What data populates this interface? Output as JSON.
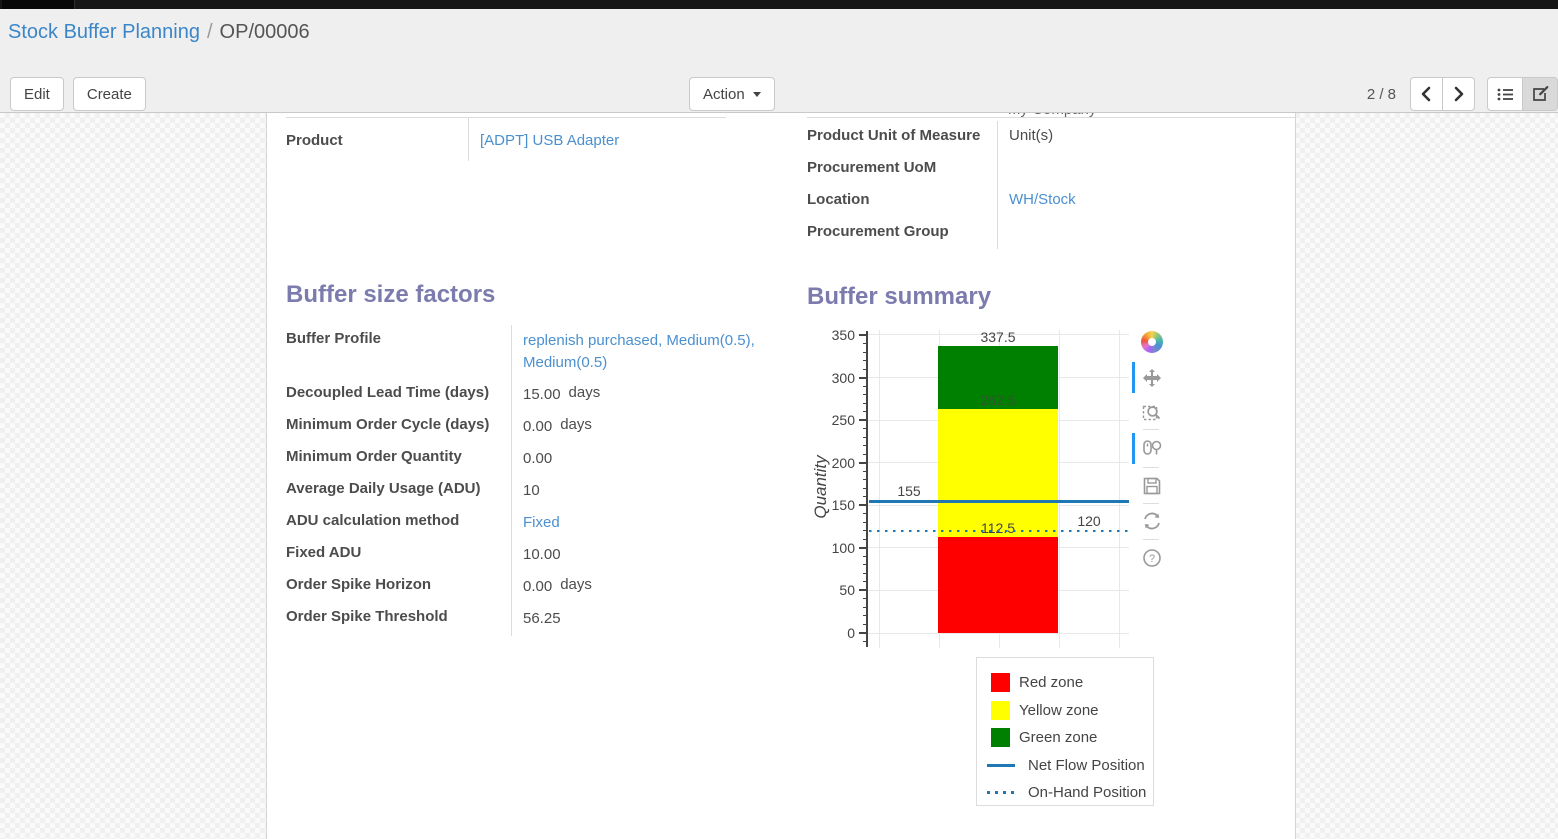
{
  "colors": {
    "accent_link": "#4a90cf",
    "breadcrumb_link": "#3a86c8",
    "heading": "#7c7bad",
    "text": "#4c4c4c",
    "chart_text": "#444444",
    "modebar_active": "#2196f3"
  },
  "header": {
    "breadcrumb": {
      "parent": "Stock Buffer Planning",
      "separator": "/",
      "current": "OP/00006"
    },
    "buttons": {
      "edit": "Edit",
      "create": "Create",
      "action": "Action"
    },
    "pager": {
      "text": "2 / 8"
    }
  },
  "form": {
    "product": {
      "label": "Product",
      "value": "[ADPT] USB Adapter"
    },
    "clipped_value": "My Company",
    "right_fields": [
      {
        "label": "Product Unit of Measure",
        "value": "Unit(s)"
      },
      {
        "label": "Procurement UoM",
        "value": ""
      },
      {
        "label": "Location",
        "value": "WH/Stock"
      },
      {
        "label": "Procurement Group",
        "value": ""
      }
    ]
  },
  "buffer_size_factors": {
    "title": "Buffer size factors",
    "fields": [
      {
        "label": "Buffer Profile",
        "value": "replenish purchased, Medium(0.5), Medium(0.5)",
        "suffix": ""
      },
      {
        "label": "Decoupled Lead Time (days)",
        "value": "15.00",
        "suffix": "days"
      },
      {
        "label": "Minimum Order Cycle (days)",
        "value": "0.00",
        "suffix": "days"
      },
      {
        "label": "Minimum Order Quantity",
        "value": "0.00",
        "suffix": ""
      },
      {
        "label": "Average Daily Usage (ADU)",
        "value": "10",
        "suffix": ""
      },
      {
        "label": "ADU calculation method",
        "value": "Fixed",
        "suffix": ""
      },
      {
        "label": "Fixed ADU",
        "value": "10.00",
        "suffix": ""
      },
      {
        "label": "Order Spike Horizon",
        "value": "0.00",
        "suffix": "days"
      },
      {
        "label": "Order Spike Threshold",
        "value": "56.25",
        "suffix": ""
      }
    ]
  },
  "buffer_summary": {
    "title": "Buffer summary",
    "chart_data": {
      "type": "bar",
      "title": "",
      "xlabel": "",
      "ylabel": "Quantity",
      "ylim": [
        0,
        350
      ],
      "yticks": [
        0,
        50,
        100,
        150,
        200,
        250,
        300,
        350
      ],
      "grid": true,
      "categories": [
        ""
      ],
      "series": [
        {
          "name": "Red zone",
          "color": "#ff0000",
          "from": 0,
          "to": 112.5
        },
        {
          "name": "Yellow zone",
          "color": "#ffff00",
          "from": 112.5,
          "to": 262.5
        },
        {
          "name": "Green zone",
          "color": "#008000",
          "from": 262.5,
          "to": 337.5
        }
      ],
      "bar_labels": [
        {
          "text": "337.5",
          "value": 337.5
        },
        {
          "text": "262.5",
          "value": 262.5
        },
        {
          "text": "112.5",
          "value": 112.5
        }
      ],
      "hlines": [
        {
          "name": "Net Flow Position",
          "value": 155,
          "style": "solid",
          "color": "#1f77b4",
          "label": "155",
          "label_side": "left"
        },
        {
          "name": "On-Hand Position",
          "value": 120,
          "style": "dotted",
          "color": "#1f77b4",
          "label": "120",
          "label_side": "right"
        }
      ],
      "legend_position": "below-right",
      "legend_items": [
        {
          "label": "Red zone",
          "swatch": "square",
          "color": "#ff0000"
        },
        {
          "label": "Yellow zone",
          "swatch": "square",
          "color": "#ffff00"
        },
        {
          "label": "Green zone",
          "swatch": "square",
          "color": "#008000"
        },
        {
          "label": "Net Flow Position",
          "swatch": "line",
          "color": "#1f77b4"
        },
        {
          "label": "On-Hand Position",
          "swatch": "dots",
          "color": "#1f77b4"
        }
      ],
      "modebar_icons": [
        "plotly-logo",
        "pan",
        "box-zoom",
        "compare-data-on-hover",
        "save-image",
        "reset-axes",
        "help"
      ]
    }
  }
}
